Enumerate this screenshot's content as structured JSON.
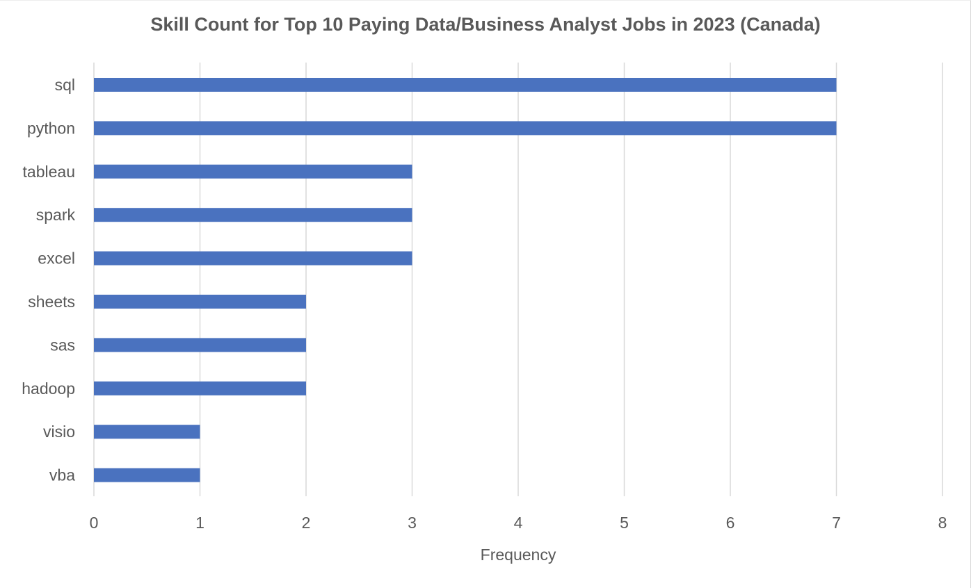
{
  "chart_data": {
    "type": "bar",
    "orientation": "horizontal",
    "title": "Skill Count for Top 10 Paying Data/Business Analyst Jobs in 2023 (Canada)",
    "xlabel": "Frequency",
    "ylabel": "",
    "categories": [
      "sql",
      "python",
      "tableau",
      "spark",
      "excel",
      "sheets",
      "sas",
      "hadoop",
      "visio",
      "vba"
    ],
    "values": [
      7,
      7,
      3,
      3,
      3,
      2,
      2,
      2,
      1,
      1
    ],
    "xlim": [
      0,
      8
    ],
    "xticks": [
      "0",
      "1",
      "2",
      "3",
      "4",
      "5",
      "6",
      "7",
      "8"
    ],
    "grid": "vertical",
    "legend": "none",
    "bar_color": "#4a72bf",
    "grid_color": "#d9d9d9"
  }
}
